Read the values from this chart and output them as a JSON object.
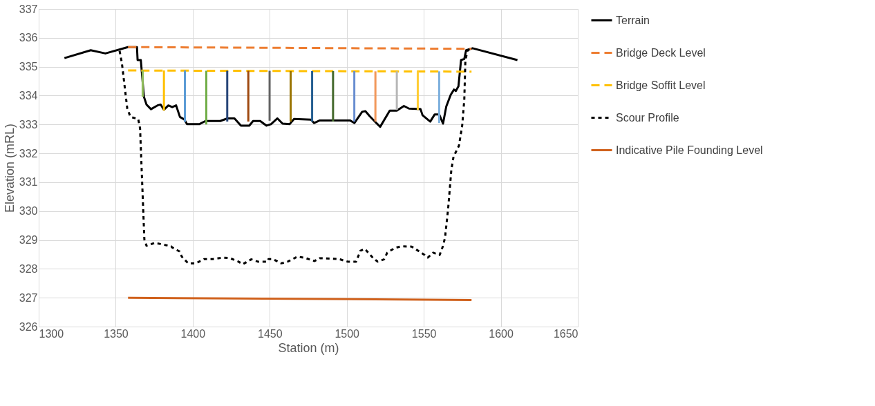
{
  "chart_data": {
    "type": "line",
    "xlabel": "Station (m)",
    "ylabel": "Elevation (mRL)",
    "xlim": [
      1300,
      1650
    ],
    "xticks": [
      1300,
      1350,
      1400,
      1450,
      1500,
      1550,
      1600,
      1650
    ],
    "ylim": [
      326,
      337
    ],
    "yticks": [
      326,
      327,
      328,
      329,
      330,
      331,
      332,
      333,
      334,
      335,
      336,
      337
    ],
    "grid": true,
    "legend": "right",
    "marker": "none",
    "series": [
      {
        "name": "Terrain",
        "color": "#000000",
        "line_style": "solid",
        "x": [
          1316.7,
          1333.8,
          1343.3,
          1357.9,
          1363.8,
          1364.2,
          1366.3,
          1368.3,
          1370,
          1372.9,
          1377.1,
          1379.2,
          1381.3,
          1384.2,
          1386.7,
          1389.2,
          1391.7,
          1394.6,
          1396.3,
          1404.2,
          1408.3,
          1417.9,
          1422.5,
          1427.1,
          1431.3,
          1436.7,
          1439.2,
          1443.8,
          1447.9,
          1450.8,
          1455,
          1458.3,
          1462.9,
          1465.8,
          1476.7,
          1478.8,
          1482.5,
          1502.1,
          1505,
          1510,
          1512.1,
          1515,
          1519.2,
          1521.7,
          1527.9,
          1532.5,
          1537.1,
          1540.4,
          1547.9,
          1549.2,
          1554.2,
          1557.1,
          1560,
          1562.5,
          1564.6,
          1567.5,
          1569.6,
          1570.8,
          1572.5,
          1574.2,
          1576.3,
          1577.5,
          1581.7,
          1610.8
        ],
        "values": [
          335.3,
          335.57,
          335.46,
          335.68,
          335.68,
          335.23,
          335.23,
          333.96,
          333.69,
          333.53,
          333.66,
          333.69,
          333.51,
          333.66,
          333.6,
          333.66,
          333.26,
          333.17,
          333.01,
          333.01,
          333.12,
          333.12,
          333.21,
          333.21,
          332.96,
          332.96,
          333.12,
          333.12,
          332.96,
          333.01,
          333.21,
          333.03,
          333.01,
          333.19,
          333.17,
          333.05,
          333.14,
          333.14,
          333.05,
          333.44,
          333.46,
          333.28,
          333.05,
          332.92,
          333.48,
          333.48,
          333.64,
          333.55,
          333.53,
          333.32,
          333.1,
          333.35,
          333.35,
          333.03,
          333.62,
          334.03,
          334.21,
          334.16,
          334.32,
          335.23,
          335.27,
          335.57,
          335.64,
          335.23
        ]
      },
      {
        "name": "Bridge Deck Level",
        "color": "#ed7d31",
        "line_style": "dashed",
        "x": [
          1358,
          1581
        ],
        "values": [
          335.68,
          335.62
        ]
      },
      {
        "name": "Bridge Soffit Level",
        "color": "#ffc000",
        "line_style": "dashed",
        "x": [
          1358,
          1581
        ],
        "values": [
          334.87,
          334.83
        ]
      },
      {
        "name": "Scour Profile",
        "color": "#000000",
        "line_style": "dotted",
        "x": [
          1352.5,
          1354,
          1357.5,
          1359.6,
          1364.6,
          1365.8,
          1368.6,
          1370,
          1375.5,
          1379,
          1386,
          1386.7,
          1391.5,
          1392.9,
          1397.1,
          1401.9,
          1407.5,
          1413,
          1420,
          1424.2,
          1429.7,
          1432.5,
          1438,
          1442.2,
          1448.5,
          1449.2,
          1452,
          1457.5,
          1461.7,
          1467.9,
          1472.8,
          1479,
          1482.5,
          1495,
          1500.5,
          1506.1,
          1508.9,
          1511.7,
          1517.2,
          1520,
          1524.2,
          1526.3,
          1531.1,
          1535.3,
          1542.2,
          1550.5,
          1552.6,
          1556.1,
          1560.3,
          1562.4,
          1563.8,
          1565.8,
          1567.9,
          1569.3,
          1572.8,
          1574.9,
          1576.3,
          1577,
          1578.3,
          1580.4
        ],
        "values": [
          335.55,
          335.13,
          333.55,
          333.26,
          333.19,
          332.87,
          329.02,
          328.8,
          328.9,
          328.86,
          328.78,
          328.74,
          328.6,
          328.42,
          328.19,
          328.19,
          328.34,
          328.34,
          328.39,
          328.37,
          328.25,
          328.16,
          328.33,
          328.25,
          328.25,
          328.34,
          328.34,
          328.19,
          328.25,
          328.42,
          328.38,
          328.27,
          328.37,
          328.34,
          328.25,
          328.25,
          328.63,
          328.69,
          328.37,
          328.25,
          328.33,
          328.56,
          328.72,
          328.78,
          328.77,
          328.48,
          328.39,
          328.56,
          328.48,
          328.78,
          329.08,
          330.07,
          331.43,
          331.88,
          332.26,
          332.94,
          333.85,
          335.2,
          335.55,
          335.64
        ]
      },
      {
        "name": "Indicative Pile Founding Level",
        "color": "#d0611c",
        "line_style": "solid",
        "x": [
          1358,
          1581
        ],
        "values": [
          327.0,
          326.92
        ]
      },
      {
        "color": "#8fbc5a",
        "line_style": "solid",
        "x": [
          1367.5,
          1367.5
        ],
        "values": [
          333.96,
          334.87
        ]
      },
      {
        "color": "#ffc000",
        "line_style": "solid",
        "x": [
          1381.3,
          1381.3
        ],
        "values": [
          333.48,
          334.87
        ]
      },
      {
        "color": "#5b9bd5",
        "line_style": "solid",
        "x": [
          1394.9,
          1394.9
        ],
        "values": [
          333.09,
          334.87
        ]
      },
      {
        "color": "#70ad47",
        "line_style": "solid",
        "x": [
          1408.8,
          1408.8
        ],
        "values": [
          333.0,
          334.86
        ]
      },
      {
        "color": "#264478",
        "line_style": "solid",
        "x": [
          1422.4,
          1422.4
        ],
        "values": [
          333.1,
          334.86
        ]
      },
      {
        "color": "#9e480e",
        "line_style": "solid",
        "x": [
          1436.1,
          1436.1
        ],
        "values": [
          333.1,
          334.86
        ]
      },
      {
        "color": "#636363",
        "line_style": "solid",
        "x": [
          1449.9,
          1449.9
        ],
        "values": [
          333.13,
          334.86
        ]
      },
      {
        "color": "#997300",
        "line_style": "solid",
        "x": [
          1463.6,
          1463.6
        ],
        "values": [
          333.1,
          334.85
        ]
      },
      {
        "color": "#255e91",
        "line_style": "solid",
        "x": [
          1477.5,
          1477.5
        ],
        "values": [
          333.1,
          334.85
        ]
      },
      {
        "color": "#43682b",
        "line_style": "solid",
        "x": [
          1491.1,
          1491.1
        ],
        "values": [
          333.1,
          334.85
        ]
      },
      {
        "color": "#698ed0",
        "line_style": "solid",
        "x": [
          1504.9,
          1504.9
        ],
        "values": [
          333.1,
          334.85
        ]
      },
      {
        "color": "#f1975a",
        "line_style": "solid",
        "x": [
          1518.6,
          1518.6
        ],
        "values": [
          333.1,
          334.84
        ]
      },
      {
        "color": "#b7b7b7",
        "line_style": "solid",
        "x": [
          1532.5,
          1532.5
        ],
        "values": [
          333.5,
          334.84
        ]
      },
      {
        "color": "#ffcd33",
        "line_style": "solid",
        "x": [
          1546.1,
          1546.1
        ],
        "values": [
          333.5,
          334.84
        ]
      },
      {
        "color": "#7cafdd",
        "line_style": "solid",
        "x": [
          1560,
          1560
        ],
        "values": [
          333.05,
          334.84
        ]
      }
    ]
  }
}
